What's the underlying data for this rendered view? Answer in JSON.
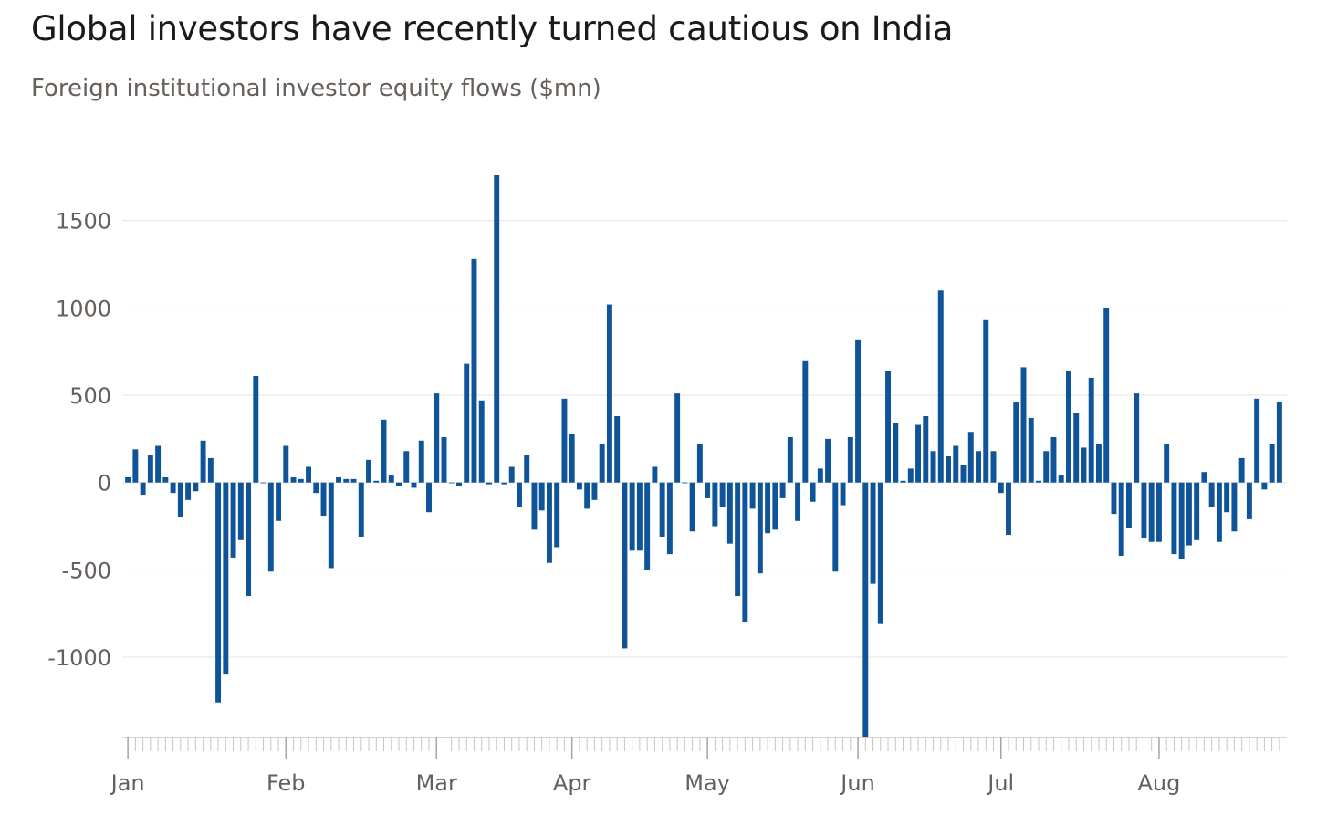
{
  "title": "Global investors have recently turned cautious on India",
  "subtitle": "Foreign institutional investor equity flows ($mn)",
  "colors": {
    "bar": "#0f5499",
    "grid": "#e6e3df",
    "axis": "#c9c5c1",
    "text": "#66605c"
  },
  "chart_data": {
    "type": "bar",
    "title": "Global investors have recently turned cautious on India",
    "subtitle": "Foreign institutional investor equity flows ($mn)",
    "xlabel": "",
    "ylabel": "",
    "ylim": [
      -1460,
      1760
    ],
    "yticks": [
      1500,
      1000,
      500,
      0,
      -500,
      -1000
    ],
    "month_labels": [
      "Jan",
      "Feb",
      "Mar",
      "Apr",
      "May",
      "Jun",
      "Jul",
      "Aug"
    ],
    "month_start_index": [
      0,
      21,
      41,
      59,
      77,
      97,
      116,
      137
    ],
    "grid": true,
    "values": [
      30,
      190,
      -70,
      160,
      210,
      30,
      -60,
      -200,
      -100,
      -50,
      240,
      140,
      -1260,
      -1100,
      -430,
      -330,
      -650,
      610,
      0,
      -510,
      -220,
      210,
      30,
      20,
      90,
      -60,
      -190,
      -490,
      30,
      20,
      20,
      -310,
      130,
      10,
      360,
      40,
      -20,
      180,
      -30,
      240,
      -170,
      510,
      260,
      0,
      -20,
      680,
      1280,
      470,
      -10,
      1760,
      -10,
      90,
      -140,
      160,
      -270,
      -160,
      -460,
      -370,
      480,
      280,
      -40,
      -150,
      -100,
      220,
      1020,
      380,
      -950,
      -390,
      -390,
      -500,
      90,
      -310,
      -410,
      510,
      0,
      -280,
      220,
      -90,
      -250,
      -140,
      -350,
      -650,
      -800,
      -150,
      -520,
      -290,
      -270,
      -90,
      260,
      -220,
      700,
      -110,
      80,
      250,
      -510,
      -130,
      260,
      820,
      -1460,
      -580,
      -810,
      640,
      340,
      10,
      80,
      330,
      380,
      180,
      1100,
      150,
      210,
      100,
      290,
      180,
      930,
      180,
      -60,
      -300,
      460,
      660,
      370,
      10,
      180,
      260,
      40,
      640,
      400,
      200,
      600,
      220,
      1000,
      -180,
      -420,
      -260,
      510,
      -320,
      -340,
      -340,
      220,
      -410,
      -440,
      -360,
      -330,
      60,
      -140,
      -340,
      -170,
      -280,
      140,
      -210,
      480,
      -40,
      220,
      460
    ]
  }
}
